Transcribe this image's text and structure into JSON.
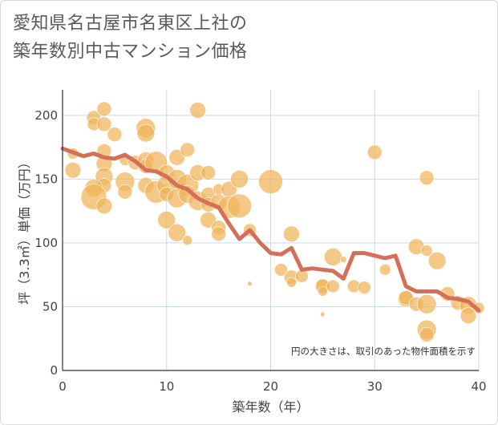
{
  "title_lines": [
    "愛知県名古屋市名東区上社の",
    "築年数別中古マンション価格"
  ],
  "chart_data": {
    "type": "scatter",
    "title": "愛知県名古屋市名東区上社の築年数別中古マンション価格",
    "xlabel": "築年数（年）",
    "ylabel": "坪（3.3㎡）単価（万円）",
    "xlim": [
      0,
      40
    ],
    "ylim": [
      0,
      220
    ],
    "xticks": [
      0,
      10,
      20,
      30,
      40
    ],
    "yticks": [
      0,
      50,
      100,
      150,
      200
    ],
    "grid": true,
    "annotation": "円の大きさは、取引のあった物件面積を示す",
    "colors": {
      "bubble": "#f0b45a",
      "line": "#d4705a"
    },
    "series": [
      {
        "kind": "bubble",
        "points": [
          [
            1,
            170,
            7
          ],
          [
            1,
            157,
            10
          ],
          [
            3,
            198,
            9
          ],
          [
            3,
            193,
            8
          ],
          [
            4,
            205,
            9
          ],
          [
            4,
            193,
            9
          ],
          [
            4,
            172,
            9
          ],
          [
            4,
            162,
            10
          ],
          [
            4,
            152,
            11
          ],
          [
            4,
            145,
            9
          ],
          [
            3,
            143,
            11
          ],
          [
            3,
            136,
            16
          ],
          [
            4,
            129,
            10
          ],
          [
            5,
            185,
            9
          ],
          [
            6,
            165,
            7
          ],
          [
            6,
            148,
            12
          ],
          [
            6,
            140,
            9
          ],
          [
            7,
            163,
            9
          ],
          [
            8,
            190,
            12
          ],
          [
            8,
            186,
            11
          ],
          [
            8,
            165,
            10
          ],
          [
            8,
            160,
            9
          ],
          [
            9,
            163,
            14
          ],
          [
            8,
            145,
            10
          ],
          [
            9,
            140,
            14
          ],
          [
            10,
            155,
            10
          ],
          [
            10,
            145,
            12
          ],
          [
            10,
            138,
            9
          ],
          [
            10,
            118,
            11
          ],
          [
            11,
            167,
            10
          ],
          [
            11,
            150,
            12
          ],
          [
            11,
            135,
            12
          ],
          [
            11,
            108,
            11
          ],
          [
            12,
            173,
            9
          ],
          [
            12,
            145,
            14
          ],
          [
            12,
            138,
            11
          ],
          [
            12,
            102,
            6
          ],
          [
            13,
            204,
            10
          ],
          [
            13,
            155,
            10
          ],
          [
            13,
            133,
            12
          ],
          [
            14,
            155,
            9
          ],
          [
            14,
            138,
            9
          ],
          [
            14,
            130,
            9
          ],
          [
            14,
            118,
            10
          ],
          [
            15,
            142,
            7
          ],
          [
            15,
            132,
            10
          ],
          [
            15,
            112,
            9
          ],
          [
            15,
            107,
            9
          ],
          [
            16,
            142,
            10
          ],
          [
            16,
            128,
            14
          ],
          [
            17,
            150,
            11
          ],
          [
            17,
            129,
            15
          ],
          [
            18,
            110,
            8
          ],
          [
            18,
            68,
            3
          ],
          [
            20,
            148,
            15
          ],
          [
            21,
            79,
            8
          ],
          [
            22,
            107,
            10
          ],
          [
            22,
            73,
            9
          ],
          [
            22,
            69,
            6
          ],
          [
            23,
            74,
            8
          ],
          [
            25,
            67,
            8
          ],
          [
            25,
            66,
            9
          ],
          [
            25,
            62,
            6
          ],
          [
            25,
            44,
            3
          ],
          [
            26,
            89,
            11
          ],
          [
            26,
            66,
            8
          ],
          [
            27,
            87,
            4
          ],
          [
            28,
            66,
            8
          ],
          [
            29,
            65,
            8
          ],
          [
            30,
            171,
            9
          ],
          [
            31,
            79,
            7
          ],
          [
            33,
            56,
            10
          ],
          [
            33,
            57,
            9
          ],
          [
            34,
            97,
            10
          ],
          [
            34,
            52,
            9
          ],
          [
            35,
            151,
            9
          ],
          [
            35,
            94,
            7
          ],
          [
            35,
            52,
            12
          ],
          [
            35,
            32,
            12
          ],
          [
            35,
            28,
            9
          ],
          [
            36,
            86,
            11
          ],
          [
            37,
            60,
            9
          ],
          [
            38,
            53,
            9
          ],
          [
            39,
            51,
            11
          ],
          [
            39,
            43,
            10
          ],
          [
            40,
            49,
            7
          ]
        ]
      },
      {
        "kind": "line",
        "x": [
          0,
          1,
          2,
          3,
          4,
          5,
          6,
          7,
          8,
          9,
          10,
          11,
          12,
          13,
          14,
          15,
          16,
          17,
          18,
          19,
          20,
          21,
          22,
          23,
          24,
          25,
          26,
          27,
          28,
          29,
          30,
          31,
          32,
          33,
          34,
          35,
          36,
          37,
          38,
          39,
          40
        ],
        "y": [
          174,
          171,
          168,
          170,
          167,
          166,
          169,
          164,
          157,
          156,
          152,
          145,
          142,
          135,
          131,
          128,
          115,
          103,
          110,
          100,
          92,
          91,
          96,
          79,
          80,
          79,
          78,
          72,
          92,
          92,
          90,
          88,
          90,
          66,
          62,
          62,
          62,
          57,
          56,
          54,
          47
        ]
      }
    ]
  }
}
